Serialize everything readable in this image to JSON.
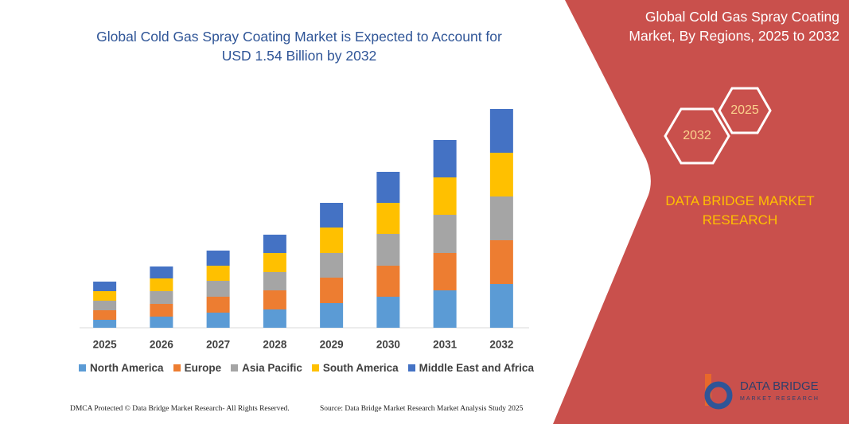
{
  "chart_data": {
    "type": "stacked_bar",
    "title": "Global Cold Gas Spray Coating Market is Expected to Account for USD 1.54 Billion by 2032",
    "categories": [
      "2025",
      "2026",
      "2027",
      "2028",
      "2029",
      "2030",
      "2031",
      "2032"
    ],
    "series": [
      {
        "name": "North America",
        "color": "#5b9bd5",
        "values": [
          10,
          14,
          19,
          23,
          31,
          39,
          47,
          55
        ]
      },
      {
        "name": "Europe",
        "color": "#ed7d31",
        "values": [
          12,
          16,
          20,
          24,
          32,
          39,
          47,
          55
        ]
      },
      {
        "name": "Asia Pacific",
        "color": "#a5a5a5",
        "values": [
          12,
          16,
          20,
          23,
          31,
          40,
          48,
          55
        ]
      },
      {
        "name": "South America",
        "color": "#ffc000",
        "values": [
          12,
          16,
          19,
          24,
          32,
          39,
          47,
          55
        ]
      },
      {
        "name": "Middle East and Africa",
        "color": "#4472c4",
        "values": [
          12,
          15,
          19,
          23,
          31,
          39,
          47,
          55
        ]
      }
    ]
  },
  "panel": {
    "title": "Global Cold Gas Spray Coating Market, By Regions, 2025 to 2032",
    "hex_right": "2025",
    "hex_left": "2032",
    "brand": "DATA BRIDGE MARKET RESEARCH",
    "logo_name": "DATA BRIDGE",
    "logo_sub": "MARKET RESEARCH"
  },
  "footer": {
    "left": "DMCA Protected © Data Bridge Market Research- All Rights Reserved.",
    "right": "Source: Data Bridge Market Research Market Analysis Study 2025"
  }
}
